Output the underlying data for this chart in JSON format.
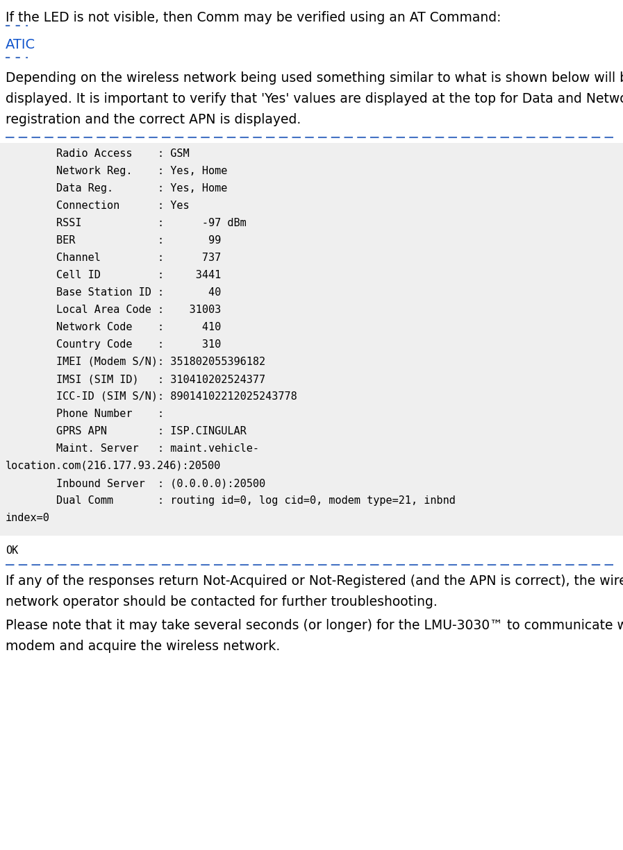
{
  "bg_color": "#ffffff",
  "intro_text": "If the LED is not visible, then Comm may be verified using an AT Command:",
  "atic_text": "ATIC",
  "atic_color": "#1155CC",
  "desc_lines": [
    "Depending on the wireless network being used something similar to what is shown below will be",
    "displayed. It is important to verify that 'Yes' values are displayed at the top for Data and Network",
    "registration and the correct APN is displayed."
  ],
  "code_lines": [
    "        Radio Access    : GSM",
    "        Network Reg.    : Yes, Home",
    "        Data Reg.       : Yes, Home",
    "        Connection      : Yes",
    "        RSSI            :      -97 dBm",
    "        BER             :       99",
    "        Channel         :      737",
    "        Cell ID         :     3441",
    "        Base Station ID :       40",
    "        Local Area Code :    31003",
    "        Network Code    :      410",
    "        Country Code    :      310",
    "        IMEI (Modem S/N): 351802055396182",
    "        IMSI (SIM ID)   : 310410202524377",
    "        ICC-ID (SIM S/N): 89014102212025243778",
    "        Phone Number    :",
    "        GPRS APN        : ISP.CINGULAR",
    "        Maint. Server   : maint.vehicle-",
    "location.com(216.177.93.246):20500",
    "        Inbound Server  : (0.0.0.0):20500",
    "        Dual Comm       : routing id=0, log cid=0, modem type=21, inbnd",
    "index=0"
  ],
  "ok_text": "OK",
  "footer_lines1": [
    "If any of the responses return Not-Acquired or Not-Registered (and the APN is correct), the wireless",
    "network operator should be contacted for further troubleshooting."
  ],
  "footer_lines2": [
    "Please note that it may take several seconds (or longer) for the LMU-3030™ to communicate with the",
    "modem and acquire the wireless network."
  ],
  "dotted_line_color": "#4472C4",
  "code_bg": "#efefef",
  "intro_fontsize": 13.5,
  "atic_fontsize": 14,
  "code_fontsize": 11,
  "body_fontsize": 13.5
}
